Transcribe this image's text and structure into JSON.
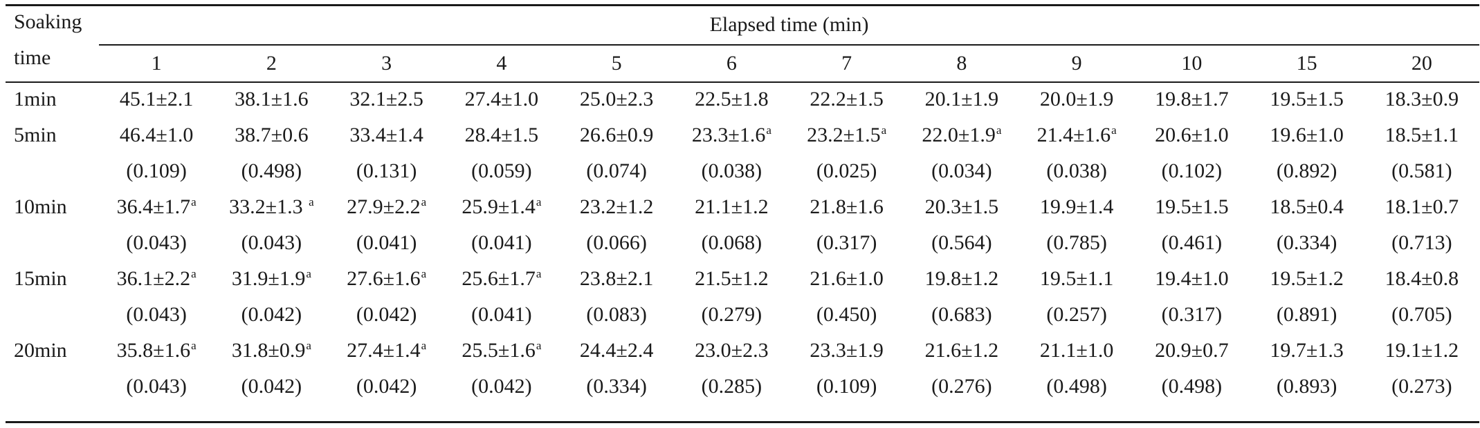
{
  "table": {
    "stub_header": [
      "Soaking",
      "time"
    ],
    "spanner": "Elapsed time (min)",
    "columns": [
      "1",
      "2",
      "3",
      "4",
      "5",
      "6",
      "7",
      "8",
      "9",
      "10",
      "15",
      "20"
    ],
    "rows": [
      {
        "label": "1min",
        "values": [
          {
            "v": "45.1±2.1",
            "mark": ""
          },
          {
            "v": "38.1±1.6",
            "mark": ""
          },
          {
            "v": "32.1±2.5",
            "mark": ""
          },
          {
            "v": "27.4±1.0",
            "mark": ""
          },
          {
            "v": "25.0±2.3",
            "mark": ""
          },
          {
            "v": "22.5±1.8",
            "mark": ""
          },
          {
            "v": "22.2±1.5",
            "mark": ""
          },
          {
            "v": "20.1±1.9",
            "mark": ""
          },
          {
            "v": "20.0±1.9",
            "mark": ""
          },
          {
            "v": "19.8±1.7",
            "mark": ""
          },
          {
            "v": "19.5±1.5",
            "mark": ""
          },
          {
            "v": "18.3±0.9",
            "mark": ""
          }
        ],
        "p": []
      },
      {
        "label": "5min",
        "values": [
          {
            "v": "46.4±1.0",
            "mark": ""
          },
          {
            "v": "38.7±0.6",
            "mark": ""
          },
          {
            "v": "33.4±1.4",
            "mark": ""
          },
          {
            "v": "28.4±1.5",
            "mark": ""
          },
          {
            "v": "26.6±0.9",
            "mark": ""
          },
          {
            "v": "23.3±1.6",
            "mark": "a"
          },
          {
            "v": "23.2±1.5",
            "mark": "a"
          },
          {
            "v": "22.0±1.9",
            "mark": "a"
          },
          {
            "v": "21.4±1.6",
            "mark": "a"
          },
          {
            "v": "20.6±1.0",
            "mark": ""
          },
          {
            "v": "19.6±1.0",
            "mark": ""
          },
          {
            "v": "18.5±1.1",
            "mark": ""
          }
        ],
        "p": [
          "(0.109)",
          "(0.498)",
          "(0.131)",
          "(0.059)",
          "(0.074)",
          "(0.038)",
          "(0.025)",
          "(0.034)",
          "(0.038)",
          "(0.102)",
          "(0.892)",
          "(0.581)"
        ]
      },
      {
        "label": "10min",
        "values": [
          {
            "v": "36.4±1.7",
            "mark": "a"
          },
          {
            "v": "33.2±1.3 ",
            "mark": "a"
          },
          {
            "v": "27.9±2.2",
            "mark": "a"
          },
          {
            "v": "25.9±1.4",
            "mark": "a"
          },
          {
            "v": "23.2±1.2",
            "mark": ""
          },
          {
            "v": "21.1±1.2",
            "mark": ""
          },
          {
            "v": "21.8±1.6",
            "mark": ""
          },
          {
            "v": "20.3±1.5",
            "mark": ""
          },
          {
            "v": "19.9±1.4",
            "mark": ""
          },
          {
            "v": "19.5±1.5",
            "mark": ""
          },
          {
            "v": "18.5±0.4",
            "mark": ""
          },
          {
            "v": "18.1±0.7",
            "mark": ""
          }
        ],
        "p": [
          "(0.043)",
          "(0.043)",
          "(0.041)",
          "(0.041)",
          "(0.066)",
          "(0.068)",
          "(0.317)",
          "(0.564)",
          "(0.785)",
          "(0.461)",
          "(0.334)",
          "(0.713)"
        ]
      },
      {
        "label": "15min",
        "values": [
          {
            "v": "36.1±2.2",
            "mark": "a"
          },
          {
            "v": "31.9±1.9",
            "mark": "a"
          },
          {
            "v": "27.6±1.6",
            "mark": "a"
          },
          {
            "v": "25.6±1.7",
            "mark": "a"
          },
          {
            "v": "23.8±2.1",
            "mark": ""
          },
          {
            "v": "21.5±1.2",
            "mark": ""
          },
          {
            "v": "21.6±1.0",
            "mark": ""
          },
          {
            "v": "19.8±1.2",
            "mark": ""
          },
          {
            "v": "19.5±1.1",
            "mark": ""
          },
          {
            "v": "19.4±1.0",
            "mark": ""
          },
          {
            "v": "19.5±1.2",
            "mark": ""
          },
          {
            "v": "18.4±0.8",
            "mark": ""
          }
        ],
        "p": [
          "(0.043)",
          "(0.042)",
          "(0.042)",
          "(0.041)",
          "(0.083)",
          "(0.279)",
          "(0.450)",
          "(0.683)",
          "(0.257)",
          "(0.317)",
          "(0.891)",
          "(0.705)"
        ]
      },
      {
        "label": "20min",
        "values": [
          {
            "v": "35.8±1.6",
            "mark": "a"
          },
          {
            "v": "31.8±0.9",
            "mark": "a"
          },
          {
            "v": "27.4±1.4",
            "mark": "a"
          },
          {
            "v": "25.5±1.6",
            "mark": "a"
          },
          {
            "v": "24.4±2.4",
            "mark": ""
          },
          {
            "v": "23.0±2.3",
            "mark": ""
          },
          {
            "v": "23.3±1.9",
            "mark": ""
          },
          {
            "v": "21.6±1.2",
            "mark": ""
          },
          {
            "v": "21.1±1.0",
            "mark": ""
          },
          {
            "v": "20.9±0.7",
            "mark": ""
          },
          {
            "v": "19.7±1.3",
            "mark": ""
          },
          {
            "v": "19.1±1.2",
            "mark": ""
          }
        ],
        "p": [
          "(0.043)",
          "(0.042)",
          "(0.042)",
          "(0.042)",
          "(0.334)",
          "(0.285)",
          "(0.109)",
          "(0.276)",
          "(0.498)",
          "(0.498)",
          "(0.893)",
          "(0.273)"
        ]
      }
    ]
  }
}
